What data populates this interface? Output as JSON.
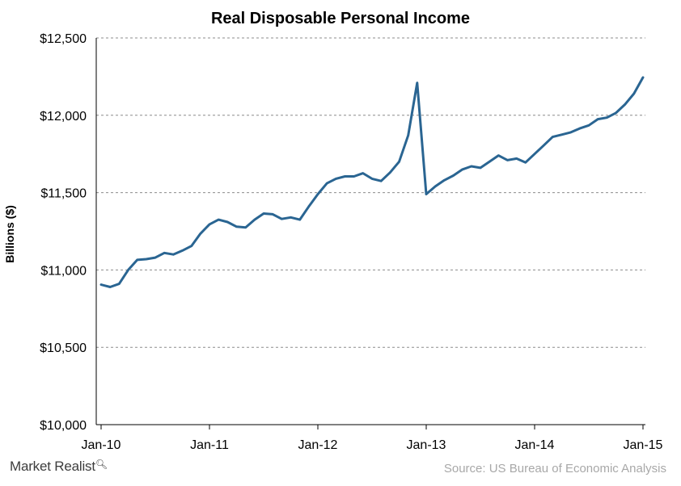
{
  "brand": {
    "logo_text": "Market Realist",
    "logo_icon": "magnifier-icon"
  },
  "source": "Source: US Bureau of Economic Analysis",
  "colors": {
    "line": "#2a6592",
    "grid": "#8c8c8c",
    "axis": "#000000",
    "source_text": "#a8a8a8"
  },
  "chart_data": {
    "type": "line",
    "title": "Real Disposable Personal Income",
    "xlabel": "",
    "ylabel": "Billions ($)",
    "ylim": [
      10000,
      12500
    ],
    "ytick_values": [
      10000,
      10500,
      11000,
      11500,
      12000,
      12500
    ],
    "ytick_labels": [
      "$10,000",
      "$10,500",
      "$11,000",
      "$11,500",
      "$12,000",
      "$12,500"
    ],
    "xtick_labels": [
      "Jan-10",
      "Jan-11",
      "Jan-12",
      "Jan-13",
      "Jan-14",
      "Jan-15"
    ],
    "grid": "horizontal dashed",
    "legend": "none",
    "series": [
      {
        "x": [
          "Jan-10",
          "Feb-10",
          "Mar-10",
          "Apr-10",
          "May-10",
          "Jun-10",
          "Jul-10",
          "Aug-10",
          "Sep-10",
          "Oct-10",
          "Nov-10",
          "Dec-10",
          "Jan-11",
          "Feb-11",
          "Mar-11",
          "Apr-11",
          "May-11",
          "Jun-11",
          "Jul-11",
          "Aug-11",
          "Sep-11",
          "Oct-11",
          "Nov-11",
          "Dec-11",
          "Jan-12",
          "Feb-12",
          "Mar-12",
          "Apr-12",
          "May-12",
          "Jun-12",
          "Jul-12",
          "Aug-12",
          "Sep-12",
          "Oct-12",
          "Nov-12",
          "Dec-12",
          "Jan-13",
          "Feb-13",
          "Mar-13",
          "Apr-13",
          "May-13",
          "Jun-13",
          "Jul-13",
          "Aug-13",
          "Sep-13",
          "Oct-13",
          "Nov-13",
          "Dec-13",
          "Jan-14",
          "Feb-14",
          "Mar-14",
          "Apr-14",
          "May-14",
          "Jun-14",
          "Jul-14",
          "Aug-14",
          "Sep-14",
          "Oct-14",
          "Nov-14",
          "Dec-14",
          "Jan-15"
        ],
        "values": [
          10905,
          10890,
          10910,
          11000,
          11065,
          11070,
          11080,
          11110,
          11100,
          11125,
          11155,
          11235,
          11295,
          11325,
          11310,
          11280,
          11275,
          11325,
          11365,
          11360,
          11330,
          11340,
          11325,
          11410,
          11490,
          11560,
          11590,
          11605,
          11605,
          11625,
          11590,
          11575,
          11630,
          11700,
          11870,
          12210,
          11490,
          11540,
          11580,
          11610,
          11650,
          11670,
          11660,
          11700,
          11740,
          11710,
          11720,
          11695,
          11750,
          11805,
          11860,
          11875,
          11890,
          11915,
          11935,
          11975,
          11985,
          12015,
          12070,
          12140,
          12245
        ]
      }
    ]
  }
}
